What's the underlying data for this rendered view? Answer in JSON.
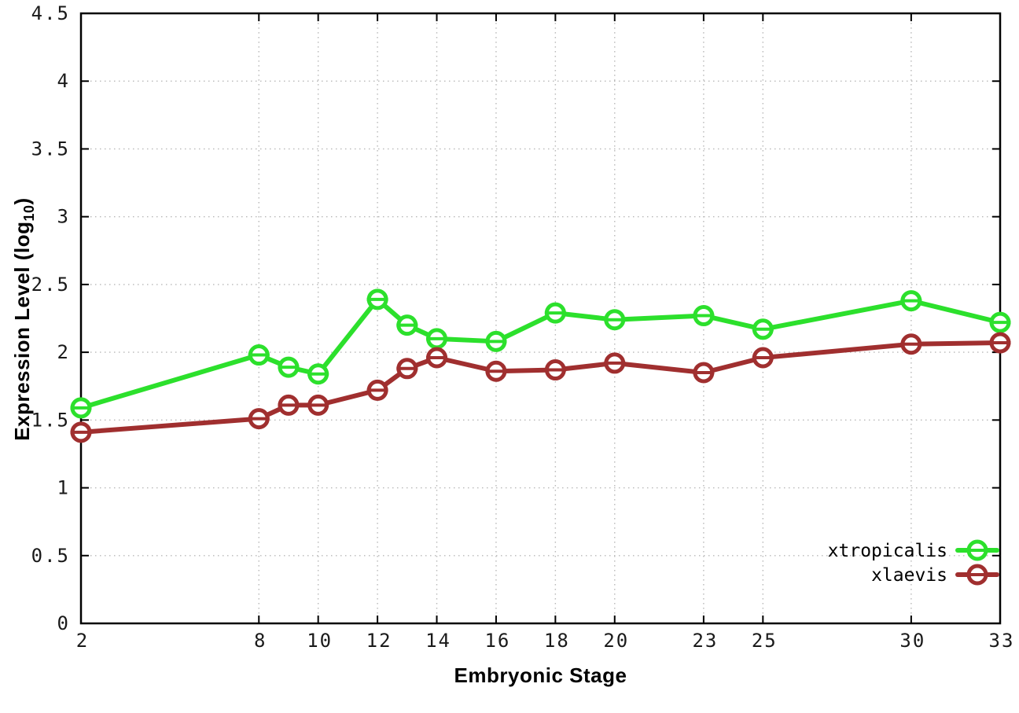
{
  "figure": {
    "xlabel": "Embryonic Stage",
    "ylabel_main": "Expression Level (log",
    "ylabel_sub": "10",
    "ylabel_close": ")"
  },
  "chart_data": {
    "type": "line",
    "title": "",
    "xlabel": "Embryonic Stage",
    "ylabel": "Expression Level (log10)",
    "xlim": [
      2,
      33
    ],
    "ylim": [
      0,
      4.5
    ],
    "grid": true,
    "grid_style": "dotted",
    "legend_position": "bottom-right",
    "marker_style": "open-circle-with-error-dash",
    "x": [
      2,
      8,
      9,
      10,
      12,
      13,
      14,
      16,
      18,
      20,
      23,
      25,
      30,
      33
    ],
    "xtick_values": [
      2,
      8,
      10,
      12,
      14,
      16,
      18,
      20,
      23,
      25,
      30,
      33
    ],
    "xtick_labels": [
      "2",
      "8",
      "10",
      "12",
      "14",
      "16",
      "18",
      "20",
      "23",
      "25",
      "30",
      "33"
    ],
    "ytick_values": [
      0,
      0.5,
      1,
      1.5,
      2,
      2.5,
      3,
      3.5,
      4,
      4.5
    ],
    "ytick_labels": [
      "0",
      "0.5",
      "1",
      "1.5",
      "2",
      "2.5",
      "3",
      "3.5",
      "4",
      "4.5"
    ],
    "series": [
      {
        "name": "xtropicalis",
        "color": "#2ce02c",
        "values": [
          1.59,
          1.98,
          1.89,
          1.84,
          2.39,
          2.2,
          2.1,
          2.08,
          2.29,
          2.24,
          2.27,
          2.17,
          2.38,
          2.22
        ]
      },
      {
        "name": "xlaevis",
        "color": "#a02f2f",
        "values": [
          1.41,
          1.51,
          1.61,
          1.61,
          1.72,
          1.88,
          1.96,
          1.86,
          1.87,
          1.92,
          1.85,
          1.96,
          2.06,
          2.07
        ]
      }
    ],
    "colors": {
      "grid": "#b8b8b8",
      "axis": "#000000",
      "tick_text": "#1a1a1a",
      "background": "#ffffff"
    }
  }
}
